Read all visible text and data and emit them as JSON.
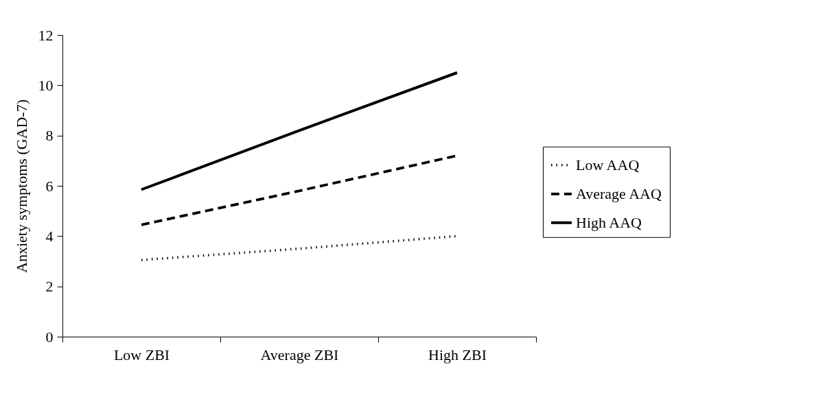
{
  "chart_data": {
    "type": "line",
    "ylabel": "Anxiety symptoms (GAD-7)",
    "categories": [
      "Low ZBI",
      "Average ZBI",
      "High ZBI"
    ],
    "series": [
      {
        "name": "Low AAQ",
        "color": "#000000",
        "line_style": "dotted",
        "values": [
          3.05,
          3.5,
          4.0
        ]
      },
      {
        "name": "Average AAQ",
        "color": "#000000",
        "line_style": "dashed",
        "values": [
          4.45,
          5.8,
          7.2
        ]
      },
      {
        "name": "High AAQ",
        "color": "#000000",
        "line_style": "solid",
        "values": [
          5.85,
          8.2,
          10.5
        ]
      }
    ],
    "ylim": [
      0,
      12
    ],
    "yticks": [
      0,
      2,
      4,
      6,
      8,
      10,
      12
    ],
    "grid": false,
    "legend": "right",
    "marker": "none"
  }
}
